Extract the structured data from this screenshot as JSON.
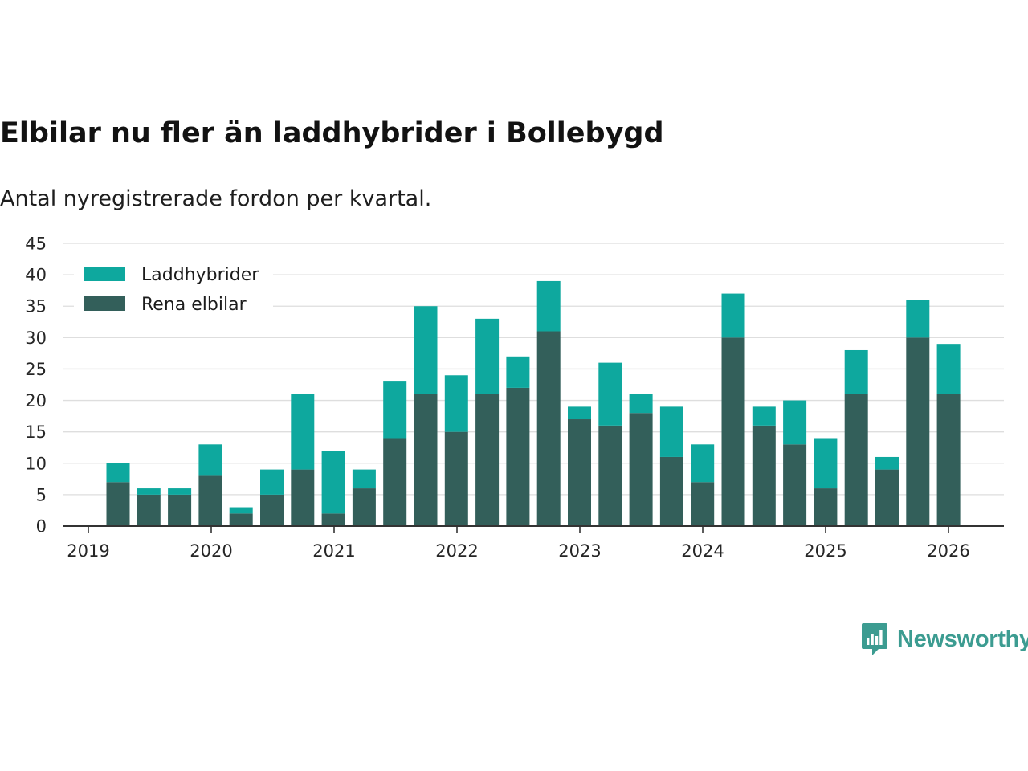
{
  "chart_data": {
    "type": "bar",
    "stacked": true,
    "title": "Elbilar nu fler än laddhybrider i Bollebygd",
    "subtitle": "Antal nyregistrerade fordon per kvartal.",
    "xlabel": "",
    "ylabel": "",
    "ylim": [
      0,
      45
    ],
    "yticks": [
      0,
      5,
      10,
      15,
      20,
      25,
      30,
      35,
      40,
      45
    ],
    "xticks": [
      "2019",
      "2020",
      "2021",
      "2022",
      "2023",
      "2024",
      "2025",
      "2026"
    ],
    "grid": true,
    "legend_position": "top-left",
    "categories": [
      "2019 Q2",
      "2019 Q3",
      "2019 Q4",
      "2020 Q1",
      "2020 Q2",
      "2020 Q3",
      "2020 Q4",
      "2021 Q1",
      "2021 Q2",
      "2021 Q3",
      "2021 Q4",
      "2022 Q1",
      "2022 Q2",
      "2022 Q3",
      "2022 Q4",
      "2023 Q1",
      "2023 Q2",
      "2023 Q3",
      "2023 Q4",
      "2024 Q1",
      "2024 Q2",
      "2024 Q3",
      "2024 Q4",
      "2025 Q1",
      "2025 Q2",
      "2025 Q3",
      "2025 Q4",
      "2026 Q1"
    ],
    "series": [
      {
        "name": "Rena elbilar",
        "color": "#335f5a",
        "values": [
          7,
          5,
          5,
          8,
          2,
          5,
          9,
          2,
          6,
          14,
          21,
          15,
          21,
          22,
          31,
          17,
          16,
          18,
          11,
          7,
          30,
          16,
          13,
          6,
          21,
          9,
          30,
          21
        ]
      },
      {
        "name": "Laddhybrider",
        "color": "#0ea89e",
        "values": [
          3,
          1,
          1,
          5,
          1,
          4,
          12,
          10,
          3,
          9,
          14,
          9,
          12,
          5,
          8,
          2,
          10,
          3,
          8,
          6,
          7,
          3,
          7,
          8,
          7,
          2,
          6,
          8
        ]
      }
    ]
  },
  "brand": {
    "name": "Newsworthy",
    "color": "#3c9c91"
  },
  "icons": {
    "brand_logo": "newsworthy-bar-chart-icon"
  }
}
